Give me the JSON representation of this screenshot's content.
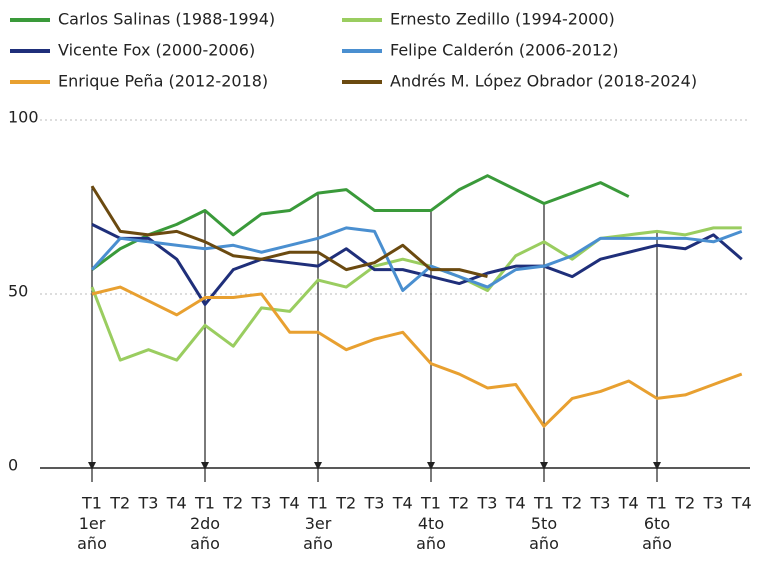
{
  "chart_data": {
    "type": "line",
    "categories": [
      "T1",
      "T2",
      "T3",
      "T4",
      "T1",
      "T2",
      "T3",
      "T4",
      "T1",
      "T2",
      "T3",
      "T4",
      "T1",
      "T2",
      "T3",
      "T4",
      "T1",
      "T2",
      "T3",
      "T4",
      "T1",
      "T2",
      "T3",
      "T4"
    ],
    "year_labels": [
      "1er año",
      "2do año",
      "3er año",
      "4to año",
      "5to año",
      "6to año"
    ],
    "ylim": [
      0,
      100
    ],
    "yticks": [
      0,
      50,
      100
    ],
    "grid": true,
    "series": [
      {
        "name": "Carlos Salinas (1988-1994)",
        "color": "#3a9a3a",
        "values": [
          57,
          63,
          67,
          70,
          74,
          67,
          73,
          74,
          79,
          80,
          74,
          74,
          74,
          80,
          84,
          80,
          76,
          79,
          82,
          78,
          null,
          null,
          null,
          null
        ]
      },
      {
        "name": "Ernesto Zedillo (1994-2000)",
        "color": "#9acd60",
        "values": [
          52,
          31,
          34,
          31,
          41,
          35,
          46,
          45,
          54,
          52,
          58,
          60,
          58,
          55,
          51,
          61,
          65,
          60,
          66,
          67,
          68,
          67,
          69,
          69
        ]
      },
      {
        "name": "Vicente Fox (2000-2006)",
        "color": "#1f2f7a",
        "values": [
          70,
          66,
          66,
          60,
          47,
          57,
          60,
          59,
          58,
          63,
          57,
          57,
          55,
          53,
          56,
          58,
          58,
          55,
          60,
          62,
          64,
          63,
          67,
          60
        ]
      },
      {
        "name": "Felipe Calderón (2006-2012)",
        "color": "#4a8fd0",
        "values": [
          57,
          66,
          65,
          64,
          63,
          64,
          62,
          64,
          66,
          69,
          68,
          51,
          58,
          55,
          52,
          57,
          58,
          61,
          66,
          66,
          66,
          66,
          65,
          68
        ]
      },
      {
        "name": "Enrique Peña (2012-2018)",
        "color": "#e8a030",
        "values": [
          50,
          52,
          48,
          44,
          49,
          49,
          50,
          39,
          39,
          34,
          37,
          39,
          30,
          27,
          23,
          24,
          12,
          20,
          22,
          25,
          20,
          21,
          24,
          27
        ]
      },
      {
        "name": "Andrés M. López Obrador (2018-2024)",
        "color": "#6b4a10",
        "values": [
          81,
          68,
          67,
          68,
          65,
          61,
          60,
          62,
          62,
          57,
          59,
          64,
          57,
          57,
          55,
          null,
          null,
          null,
          null,
          null,
          null,
          null,
          null,
          null
        ]
      }
    ]
  }
}
